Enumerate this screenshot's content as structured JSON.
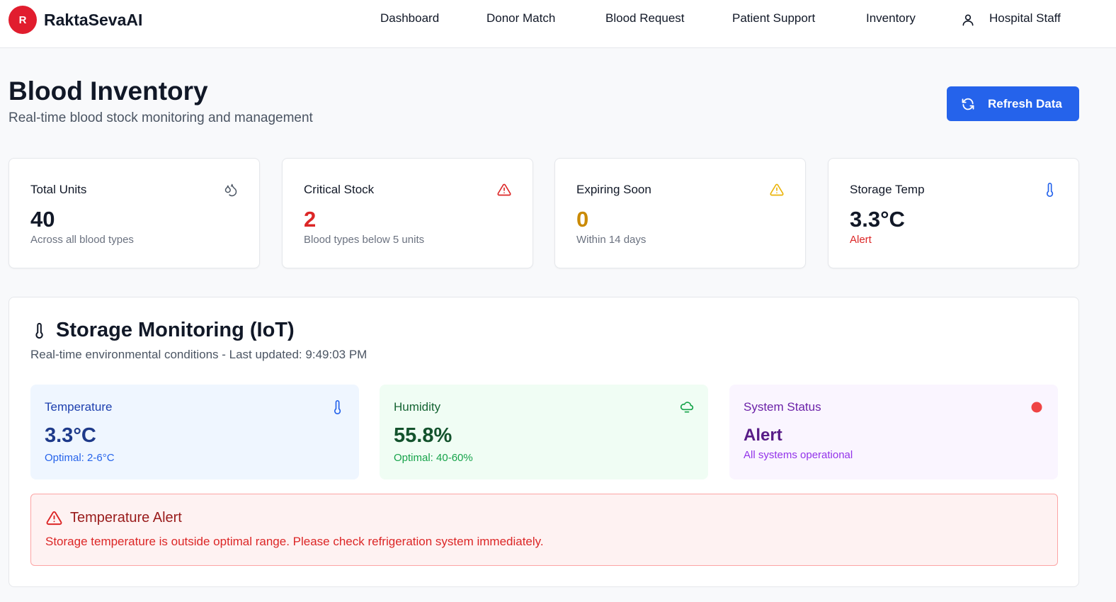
{
  "app": {
    "logo_letter": "R",
    "name": "RaktaSevaAI"
  },
  "nav": {
    "items": [
      {
        "label": "Dashboard"
      },
      {
        "label": "Donor Match"
      },
      {
        "label": "Blood Request"
      },
      {
        "label": "Patient Support"
      },
      {
        "label": "Inventory"
      }
    ],
    "user_label": "Hospital Staff",
    "user_icon": "user-icon"
  },
  "page": {
    "title": "Blood Inventory",
    "subtitle": "Real-time blood stock monitoring and management",
    "refresh_label": "Refresh Data",
    "refresh_icon": "refresh-icon"
  },
  "stats": [
    {
      "title": "Total Units",
      "value": "40",
      "sub": "Across all blood types",
      "icon": "blood-drops-icon",
      "value_color": "#111827",
      "sub_color": "#6b7280"
    },
    {
      "title": "Critical Stock",
      "value": "2",
      "sub": "Blood types below 5 units",
      "icon": "warning-triangle-icon",
      "value_color": "#dc2626",
      "sub_color": "#6b7280"
    },
    {
      "title": "Expiring Soon",
      "value": "0",
      "sub": "Within 14 days",
      "icon": "warning-triangle-icon",
      "value_color": "#ca8a04",
      "sub_color": "#6b7280"
    },
    {
      "title": "Storage Temp",
      "value": "3.3°C",
      "sub": "Alert",
      "icon": "thermometer-icon",
      "value_color": "#111827",
      "sub_color": "#dc2626"
    }
  ],
  "storage": {
    "title": "Storage Monitoring (IoT)",
    "subtitle_prefix": "Real-time environmental conditions - Last updated: ",
    "last_updated": "9:49:03 PM",
    "metrics": [
      {
        "title": "Temperature",
        "value": "3.3°C",
        "sub": "Optimal: 2-6°C",
        "icon": "thermometer-icon"
      },
      {
        "title": "Humidity",
        "value": "55.8%",
        "sub": "Optimal: 40-60%",
        "icon": "cloud-icon"
      },
      {
        "title": "System Status",
        "value": "Alert",
        "sub": "All systems operational",
        "icon": "status-dot-icon"
      }
    ],
    "alert": {
      "title": "Temperature Alert",
      "message": "Storage temperature is outside optimal range. Please check refrigeration system immediately."
    }
  },
  "colors": {
    "accent": "#2563eb",
    "brand": "#e11d2e",
    "danger": "#dc2626",
    "warning": "#ca8a04"
  }
}
